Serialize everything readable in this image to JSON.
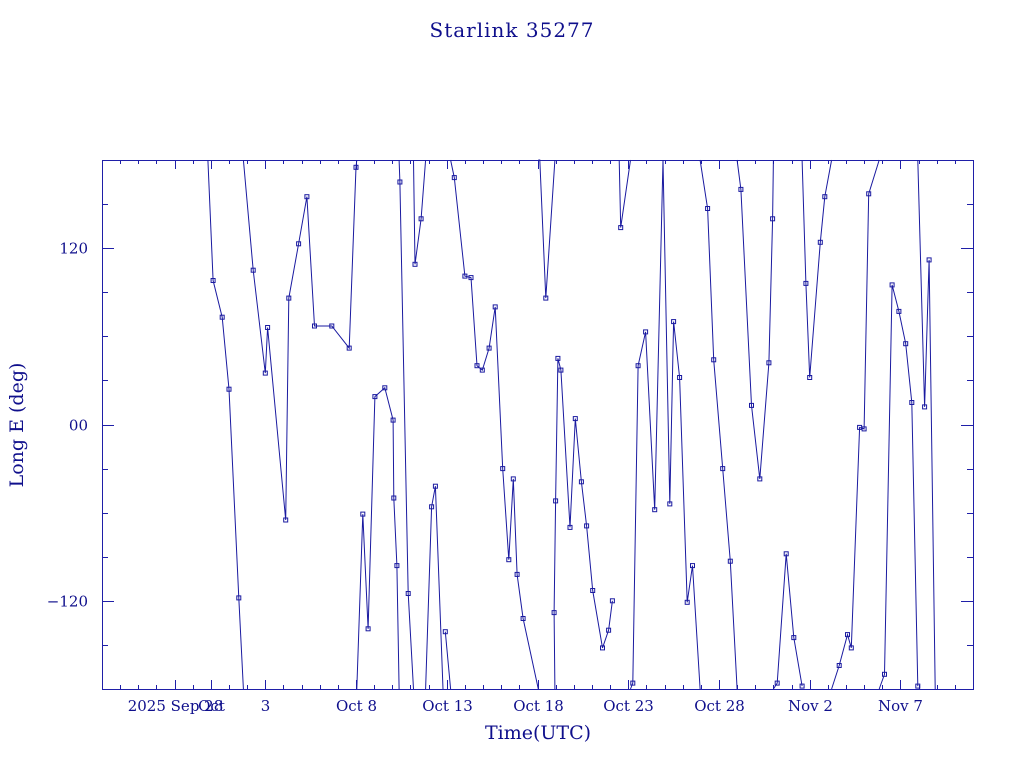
{
  "chart_data": {
    "type": "line",
    "title": "Starlink 35277",
    "xlabel": "Time(UTC)",
    "ylabel": "Long E (deg)",
    "xlim": [
      "2025-09-24",
      "2025-11-11"
    ],
    "ylim": [
      -180,
      180
    ],
    "xticks": [
      {
        "date": "2025-09-28",
        "label": "2025 Sep 28"
      },
      {
        "date": "2025-09-30",
        "label": "Oct"
      },
      {
        "date": "2025-10-03",
        "label": "3"
      },
      {
        "date": "2025-10-08",
        "label": "Oct  8"
      },
      {
        "date": "2025-10-13",
        "label": "Oct 13"
      },
      {
        "date": "2025-10-18",
        "label": "Oct 18"
      },
      {
        "date": "2025-10-23",
        "label": "Oct 23"
      },
      {
        "date": "2025-10-28",
        "label": "Oct 28"
      },
      {
        "date": "2025-11-02",
        "label": "Nov  2"
      },
      {
        "date": "2025-11-07",
        "label": "Nov  7"
      }
    ],
    "yticks": [
      {
        "value": 120,
        "label": "120"
      },
      {
        "value": 0,
        "label": "00"
      },
      {
        "value": -120,
        "label": "−120"
      }
    ],
    "x_minor_tick_step_days": 1,
    "y_minor_tick_step": 30,
    "grid": false,
    "wrap": 180,
    "series": [
      {
        "color": "#1a1aa0",
        "points": [
          [
            "2025-09-29 20:00",
            180
          ],
          [
            "2025-09-30 03:00",
            98
          ],
          [
            "2025-09-30 15:00",
            73
          ],
          [
            "2025-10-01 00:00",
            24
          ],
          [
            "2025-10-01 13:00",
            -118
          ],
          [
            "2025-10-01 19:00",
            -180
          ],
          [
            "2025-10-01 19:00",
            180
          ],
          [
            "2025-10-02 08:00",
            105
          ],
          [
            "2025-10-03 00:00",
            35
          ],
          [
            "2025-10-03 03:00",
            66
          ],
          [
            "2025-10-04 03:00",
            -65
          ],
          [
            "2025-10-04 07:00",
            86
          ],
          [
            "2025-10-04 20:00",
            123
          ],
          [
            "2025-10-05 07:00",
            155
          ],
          [
            "2025-10-05 17:00",
            67
          ],
          [
            "2025-10-06 16:00",
            67
          ],
          [
            "2025-10-07 15:00",
            52
          ],
          [
            "2025-10-08 00:00",
            175
          ],
          [
            "2025-10-08 01:00",
            180
          ],
          [
            "2025-10-08 01:00",
            -180
          ],
          [
            "2025-10-08 09:00",
            -61
          ],
          [
            "2025-10-08 16:00",
            -139
          ],
          [
            "2025-10-09 01:00",
            19
          ],
          [
            "2025-10-09 14:00",
            25
          ],
          [
            "2025-10-10 01:00",
            3
          ],
          [
            "2025-10-10 02:00",
            -50
          ],
          [
            "2025-10-10 06:00",
            -96
          ],
          [
            "2025-10-10 09:00",
            -180
          ],
          [
            "2025-10-10 09:00",
            180
          ],
          [
            "2025-10-10 10:00",
            165
          ],
          [
            "2025-10-10 21:00",
            -115
          ],
          [
            "2025-10-11 04:00",
            -180
          ],
          [
            "2025-10-11 04:00",
            180
          ],
          [
            "2025-10-11 06:00",
            109
          ],
          [
            "2025-10-11 14:00",
            140
          ],
          [
            "2025-10-11 20:00",
            180
          ],
          [
            "2025-10-11 20:00",
            -180
          ],
          [
            "2025-10-12 04:00",
            -56
          ],
          [
            "2025-10-12 09:00",
            -42
          ],
          [
            "2025-10-12 19:00",
            -180
          ],
          [
            "2025-10-12 19:00",
            180
          ],
          [
            "2025-10-12 22:00",
            -141
          ],
          [
            "2025-10-13 05:00",
            -180
          ],
          [
            "2025-10-13 05:00",
            180
          ],
          [
            "2025-10-13 10:00",
            168
          ],
          [
            "2025-10-14 00:00",
            101
          ],
          [
            "2025-10-14 08:00",
            100
          ],
          [
            "2025-10-14 16:00",
            40
          ],
          [
            "2025-10-14 23:00",
            37
          ],
          [
            "2025-10-15 08:00",
            52
          ],
          [
            "2025-10-15 16:00",
            80
          ],
          [
            "2025-10-16 02:00",
            -30
          ],
          [
            "2025-10-16 10:00",
            -92
          ],
          [
            "2025-10-16 16:00",
            -37
          ],
          [
            "2025-10-16 21:00",
            -102
          ],
          [
            "2025-10-17 05:00",
            -132
          ],
          [
            "2025-10-18 01:00",
            -180
          ],
          [
            "2025-10-18 01:00",
            180
          ],
          [
            "2025-10-18 03:00",
            180
          ],
          [
            "2025-10-18 11:00",
            86
          ],
          [
            "2025-10-18 23:00",
            180
          ],
          [
            "2025-10-18 23:00",
            -180
          ],
          [
            "2025-10-18 22:00",
            -128
          ],
          [
            "2025-10-19 00:00",
            -52
          ],
          [
            "2025-10-19 03:00",
            45
          ],
          [
            "2025-10-19 07:00",
            37
          ],
          [
            "2025-10-19 19:00",
            -70
          ],
          [
            "2025-10-20 02:00",
            4
          ],
          [
            "2025-10-20 10:00",
            -39
          ],
          [
            "2025-10-20 17:00",
            -69
          ],
          [
            "2025-10-21 01:00",
            -113
          ],
          [
            "2025-10-21 14:00",
            -152
          ],
          [
            "2025-10-21 22:00",
            -140
          ],
          [
            "2025-10-22 03:00",
            -120
          ],
          [
            "2025-10-22 12:00",
            180
          ],
          [
            "2025-10-22 12:00",
            180
          ],
          [
            "2025-10-22 14:00",
            134
          ],
          [
            "2025-10-23 03:00",
            180
          ],
          [
            "2025-10-23 03:00",
            -180
          ],
          [
            "2025-10-23 06:00",
            -176
          ],
          [
            "2025-10-23 13:00",
            40
          ],
          [
            "2025-10-23 23:00",
            63
          ],
          [
            "2025-10-24 11:00",
            -58
          ],
          [
            "2025-10-24 22:00",
            180
          ],
          [
            "2025-10-24 22:00",
            180
          ],
          [
            "2025-10-25 07:00",
            -54
          ],
          [
            "2025-10-25 12:00",
            70
          ],
          [
            "2025-10-25 20:00",
            32
          ],
          [
            "2025-10-26 06:00",
            -121
          ],
          [
            "2025-10-26 13:00",
            -96
          ],
          [
            "2025-10-26 23:00",
            -180
          ],
          [
            "2025-10-26 23:00",
            180
          ],
          [
            "2025-10-27 09:00",
            147
          ],
          [
            "2025-10-27 17:00",
            44
          ],
          [
            "2025-10-28 05:00",
            -30
          ],
          [
            "2025-10-28 15:00",
            -93
          ],
          [
            "2025-10-29 00:00",
            -180
          ],
          [
            "2025-10-29 00:00",
            180
          ],
          [
            "2025-10-29 05:00",
            160
          ],
          [
            "2025-10-29 19:00",
            13
          ],
          [
            "2025-10-30 06:00",
            -37
          ],
          [
            "2025-10-30 18:00",
            42
          ],
          [
            "2025-10-30 23:00",
            140
          ],
          [
            "2025-10-31 00:00",
            180
          ],
          [
            "2025-10-31 00:00",
            -180
          ],
          [
            "2025-10-31 05:00",
            -176
          ],
          [
            "2025-10-31 17:00",
            -88
          ],
          [
            "2025-11-01 03:00",
            -145
          ],
          [
            "2025-11-01 14:00",
            -178
          ],
          [
            "2025-11-01 14:00",
            180
          ],
          [
            "2025-11-01 19:00",
            96
          ],
          [
            "2025-11-02 00:00",
            32
          ],
          [
            "2025-11-02 14:00",
            124
          ],
          [
            "2025-11-02 20:00",
            155
          ],
          [
            "2025-11-03 05:00",
            180
          ],
          [
            "2025-11-03 05:00",
            -180
          ],
          [
            "2025-11-03 15:00",
            -164
          ],
          [
            "2025-11-04 02:00",
            -143
          ],
          [
            "2025-11-04 07:00",
            -152
          ],
          [
            "2025-11-04 18:00",
            -2
          ],
          [
            "2025-11-05 00:00",
            -3
          ],
          [
            "2025-11-05 06:00",
            157
          ],
          [
            "2025-11-05 20:00",
            180
          ],
          [
            "2025-11-05 20:00",
            -180
          ],
          [
            "2025-11-06 03:00",
            -170
          ],
          [
            "2025-11-06 13:00",
            95
          ],
          [
            "2025-11-06 22:00",
            77
          ],
          [
            "2025-11-07 07:00",
            55
          ],
          [
            "2025-11-07 15:00",
            15
          ],
          [
            "2025-11-07 23:00",
            -178
          ],
          [
            "2025-11-07 23:00",
            180
          ],
          [
            "2025-11-08 08:00",
            12
          ],
          [
            "2025-11-08 14:00",
            112
          ],
          [
            "2025-11-08 22:00",
            -180
          ],
          [
            "2025-11-08 22:00",
            180
          ],
          [
            "2025-11-09 05:00",
            -180
          ]
        ]
      }
    ]
  }
}
